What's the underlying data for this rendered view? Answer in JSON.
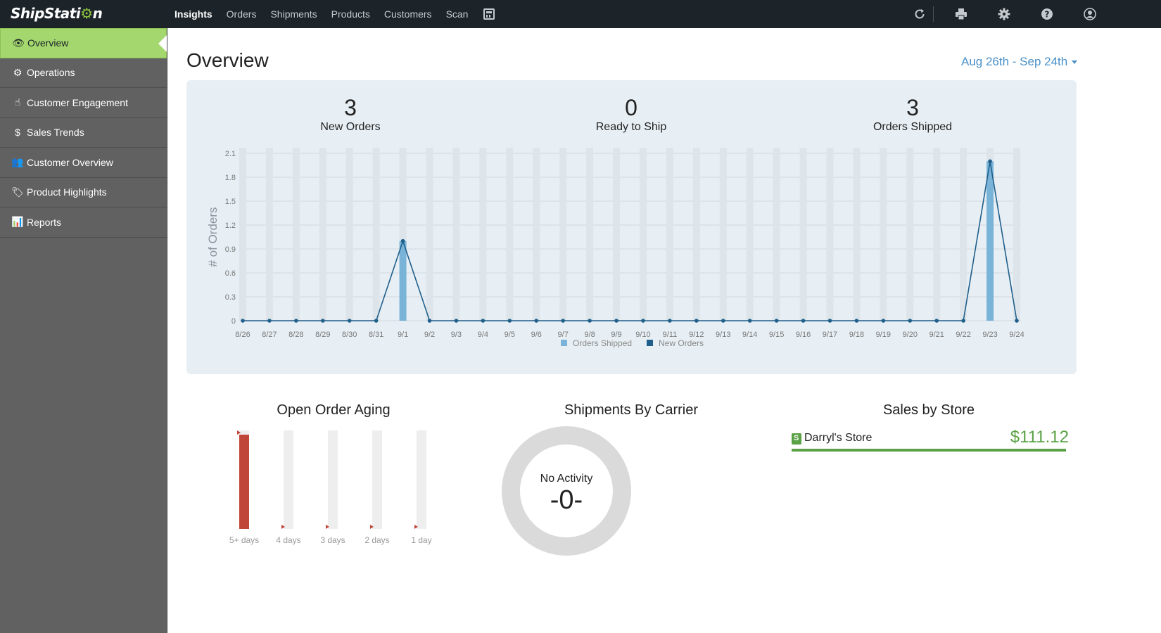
{
  "app": {
    "logo_text": "ShipStati",
    "logo_gear": "⚙",
    "logo_end": "n"
  },
  "nav": {
    "items": [
      "Insights",
      "Orders",
      "Shipments",
      "Products",
      "Customers",
      "Scan"
    ],
    "active": "Insights"
  },
  "top_icons": [
    "refresh-icon",
    "printer-icon",
    "gear-icon",
    "help-icon",
    "user-icon"
  ],
  "sidebar": {
    "items": [
      {
        "label": "Overview",
        "icon": "eye-icon",
        "glyph": "👁"
      },
      {
        "label": "Operations",
        "icon": "gears-icon",
        "glyph": "⚙"
      },
      {
        "label": "Customer Engagement",
        "icon": "hand-pointer-icon",
        "glyph": "☝"
      },
      {
        "label": "Sales Trends",
        "icon": "dollar-icon",
        "glyph": "$"
      },
      {
        "label": "Customer Overview",
        "icon": "users-icon",
        "glyph": "👥"
      },
      {
        "label": "Product Highlights",
        "icon": "tags-icon",
        "glyph": "🏷"
      },
      {
        "label": "Reports",
        "icon": "bar-chart-icon",
        "glyph": "📊"
      }
    ]
  },
  "page": {
    "title": "Overview",
    "date_range": "Aug 26th - Sep 24th"
  },
  "stats": [
    {
      "value": "3",
      "label": "New Orders"
    },
    {
      "value": "0",
      "label": "Ready to Ship"
    },
    {
      "value": "3",
      "label": "Orders Shipped"
    }
  ],
  "chart_data": [
    {
      "type": "bar",
      "ylabel": "# of Orders",
      "ylim": [
        0,
        2.1
      ],
      "yticks": [
        "0",
        "0.3",
        "0.6",
        "0.9",
        "1.2",
        "1.5",
        "1.8",
        "2.1"
      ],
      "categories": [
        "8/26",
        "8/27",
        "8/28",
        "8/29",
        "8/30",
        "8/31",
        "9/1",
        "9/2",
        "9/3",
        "9/4",
        "9/5",
        "9/6",
        "9/7",
        "9/8",
        "9/9",
        "9/10",
        "9/11",
        "9/12",
        "9/13",
        "9/14",
        "9/15",
        "9/16",
        "9/17",
        "9/18",
        "9/19",
        "9/20",
        "9/21",
        "9/22",
        "9/23",
        "9/24"
      ],
      "series": [
        {
          "name": "Orders Shipped",
          "type": "bar",
          "color": "#7ab3d8",
          "values": [
            0,
            0,
            0,
            0,
            0,
            0,
            1,
            0,
            0,
            0,
            0,
            0,
            0,
            0,
            0,
            0,
            0,
            0,
            0,
            0,
            0,
            0,
            0,
            0,
            0,
            0,
            0,
            0,
            2,
            0
          ]
        },
        {
          "name": "New Orders",
          "type": "line",
          "color": "#1f5f8b",
          "values": [
            0,
            0,
            0,
            0,
            0,
            0,
            1,
            0,
            0,
            0,
            0,
            0,
            0,
            0,
            0,
            0,
            0,
            0,
            0,
            0,
            0,
            0,
            0,
            0,
            0,
            0,
            0,
            0,
            2,
            0
          ]
        }
      ],
      "legend": "bottom",
      "grid": true
    },
    {
      "type": "bar",
      "title": "Open Order Aging",
      "categories": [
        "5+ days",
        "4 days",
        "3 days",
        "2 days",
        "1 day"
      ],
      "values": [
        1,
        0,
        0,
        0,
        0
      ],
      "ylim": [
        0,
        1
      ]
    }
  ],
  "sections": {
    "aging_title": "Open Order Aging",
    "carrier_title": "Shipments By Carrier",
    "sales_title": "Sales by Store"
  },
  "carrier": {
    "status": "No Activity",
    "count": "-0-"
  },
  "stores": [
    {
      "name": "Darryl's Store",
      "value": "$111.12"
    }
  ],
  "colors": {
    "topbar": "#1c2329",
    "sidebar": "#616161",
    "active": "#a4d86e",
    "link": "#4a90c8",
    "aging_bar": "#c0463a",
    "sales": "#5aa245"
  }
}
